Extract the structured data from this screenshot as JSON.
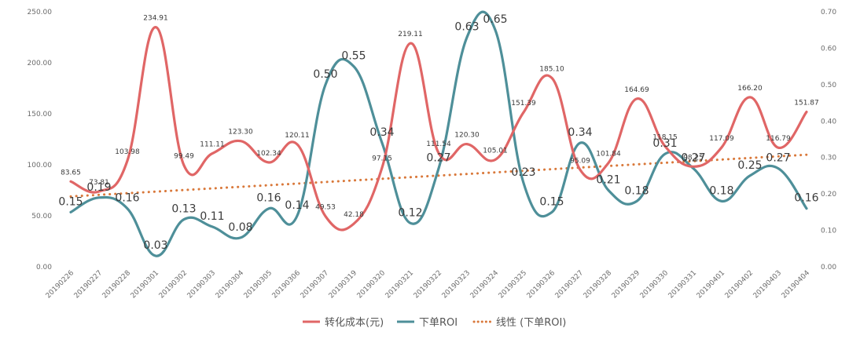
{
  "chart_data": {
    "type": "line",
    "categories": [
      "20190226",
      "20190227",
      "20190228",
      "20190301",
      "20190302",
      "20190303",
      "20190304",
      "20190305",
      "20190306",
      "20190307",
      "20190319",
      "20190320",
      "20190321",
      "20190322",
      "20190323",
      "20190324",
      "20190325",
      "20190326",
      "20190327",
      "20190328",
      "20190329",
      "20190330",
      "20190331",
      "20190401",
      "20190402",
      "20190403",
      "20190404"
    ],
    "series": [
      {
        "name": "转化成本(元)",
        "axis": "left",
        "color": "#e06666",
        "values": [
          83.65,
          73.81,
          103.98,
          234.91,
          99.49,
          111.11,
          123.3,
          102.34,
          120.11,
          49.53,
          42.18,
          97.15,
          219.11,
          111.54,
          120.3,
          105.01,
          151.39,
          185.1,
          95.09,
          101.84,
          164.69,
          118.15,
          98.25,
          117.09,
          166.2,
          116.79,
          151.87
        ],
        "labels": [
          "83.65",
          "73.81",
          "103.98",
          "234.91",
          "99.49",
          "111.11",
          "123.30",
          "102.34",
          "120.11",
          "49.53",
          "42.18",
          "97.15",
          "219.11",
          "111.54",
          "120.30",
          "105.01",
          "151.39",
          "185.10",
          "95.09",
          "101.84",
          "164.69",
          "118.15",
          "98.25",
          "117.09",
          "166.20",
          "116.79",
          "151.87"
        ]
      },
      {
        "name": "下单ROI",
        "axis": "right",
        "color": "#4e8f99",
        "values": [
          0.15,
          0.19,
          0.16,
          0.03,
          0.13,
          0.11,
          0.08,
          0.16,
          0.14,
          0.5,
          0.55,
          0.34,
          0.12,
          0.27,
          0.63,
          0.65,
          0.23,
          0.15,
          0.34,
          0.21,
          0.18,
          0.31,
          0.27,
          0.18,
          0.25,
          0.27,
          0.16
        ],
        "labels": [
          "0.15",
          "0.19",
          "0.16",
          "0.03",
          "0.13",
          "0.11",
          "0.08",
          "0.16",
          "0.14",
          "0.50",
          "0.55",
          "0.34",
          "0.12",
          "0.27",
          "0.63",
          "0.65",
          "0.23",
          "0.15",
          "0.34",
          "0.21",
          "0.18",
          "0.31",
          "0.27",
          "0.18",
          "0.25",
          "0.27",
          "0.16"
        ]
      },
      {
        "name": "线性 (下单ROI)",
        "axis": "right",
        "type": "trendline",
        "style": "dotted",
        "color": "#d9783a"
      }
    ],
    "y_left": {
      "ylim": [
        0,
        250
      ],
      "ticks": [
        0,
        50,
        100,
        150,
        200,
        250
      ],
      "tick_labels": [
        "0.00",
        "50.00",
        "100.00",
        "150.00",
        "200.00",
        "250.00"
      ]
    },
    "y_right": {
      "ylim": [
        0,
        0.7
      ],
      "ticks": [
        0,
        0.1,
        0.2,
        0.3,
        0.4,
        0.5,
        0.6,
        0.7
      ],
      "tick_labels": [
        "0.00",
        "0.10",
        "0.20",
        "0.30",
        "0.40",
        "0.50",
        "0.60",
        "0.70"
      ]
    },
    "grid": false,
    "legend": "bottom",
    "title": "",
    "xlabel": "",
    "ylabel": ""
  }
}
